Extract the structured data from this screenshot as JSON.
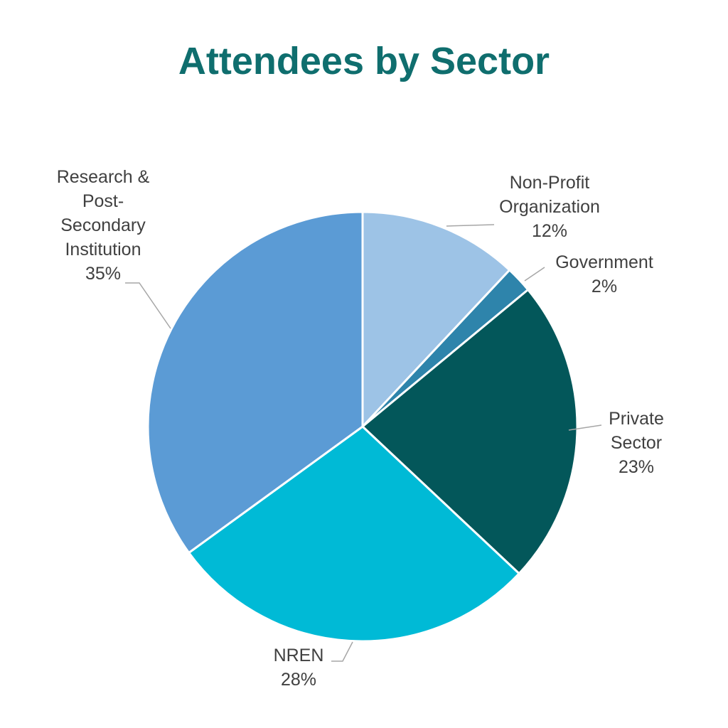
{
  "chart_data": {
    "type": "pie",
    "title": "Attendees by Sector",
    "categories": [
      "Non-Profit Organization",
      "Government",
      "Private Sector",
      "NREN",
      "Research & Post-Secondary Institution"
    ],
    "values": [
      12,
      2,
      23,
      28,
      35
    ],
    "value_labels": [
      "12%",
      "2%",
      "23%",
      "28%",
      "35%"
    ],
    "colors": [
      "#9dc3e6",
      "#2e84ab",
      "#03575a",
      "#00bad6",
      "#5b9bd5"
    ]
  }
}
